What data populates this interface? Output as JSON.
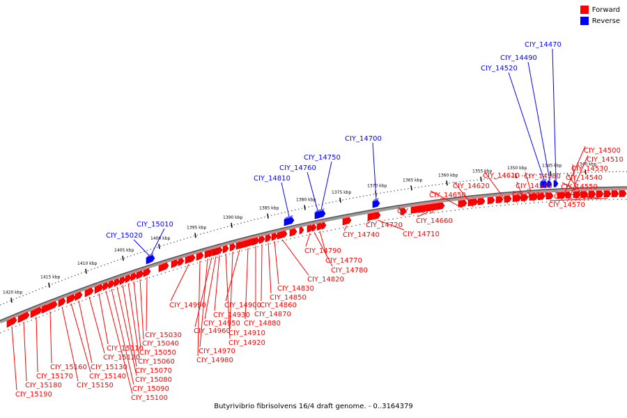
{
  "caption": "Butyrivibrio fibrisolvens 16/4 draft genome. - 0..3164379",
  "legend": [
    {
      "label": "Forward",
      "color": "#ff0000"
    },
    {
      "label": "Reverse",
      "color": "#0000ff"
    }
  ],
  "colors": {
    "forward": "#ff0000",
    "reverse": "#0000ff",
    "backbone": "#777777"
  },
  "ticks": [
    "1340 kbp",
    "1345 kbp",
    "1350 kbp",
    "1355 kbp",
    "1360 kbp",
    "1365 kbp",
    "1370 kbp",
    "1375 kbp",
    "1380 kbp",
    "1385 kbp",
    "1390 kbp",
    "1395 kbp",
    "1400 kbp",
    "1405 kbp",
    "1410 kbp",
    "1415 kbp",
    "1420 kbp"
  ],
  "reverse_genes": [
    "CIY_14470",
    "CIY_14490",
    "CIY_14520",
    "CIY_14700",
    "CIY_14750",
    "CIY_14760",
    "CIY_14810",
    "CIY_15010",
    "CIY_15020"
  ],
  "forward_genes": [
    "CIY_14500",
    "CIY_14510",
    "CIY_14530",
    "CIY_14540",
    "CIY_14550",
    "CIY_14560",
    "CIY_14570",
    "CIY_14580",
    "CIY_14590",
    "CIY_14600",
    "CIY_14610",
    "CIY_14620",
    "CIY_14650",
    "CIY_14660",
    "CIY_14670",
    "CIY_14710",
    "CIY_14720",
    "CIY_14740",
    "CIY_14770",
    "CIY_14780",
    "CIY_14790",
    "CIY_14820",
    "CIY_14830",
    "CIY_14850",
    "CIY_14860",
    "CIY_14870",
    "CIY_14880",
    "CIY_14900",
    "CIY_14910",
    "CIY_14920",
    "CIY_14930",
    "CIY_14950",
    "CIY_14960",
    "CIY_14970",
    "CIY_14980",
    "CIY_14990",
    "CIY_15030",
    "CIY_15040",
    "CIY_15050",
    "CIY_15060",
    "CIY_15070",
    "CIY_15080",
    "CIY_15090",
    "CIY_15100",
    "CIY_15110",
    "CIY_15120",
    "CIY_15130",
    "CIY_15140",
    "CIY_15150",
    "CIY_15160",
    "CIY_15170",
    "CIY_15180",
    "CIY_15190"
  ]
}
